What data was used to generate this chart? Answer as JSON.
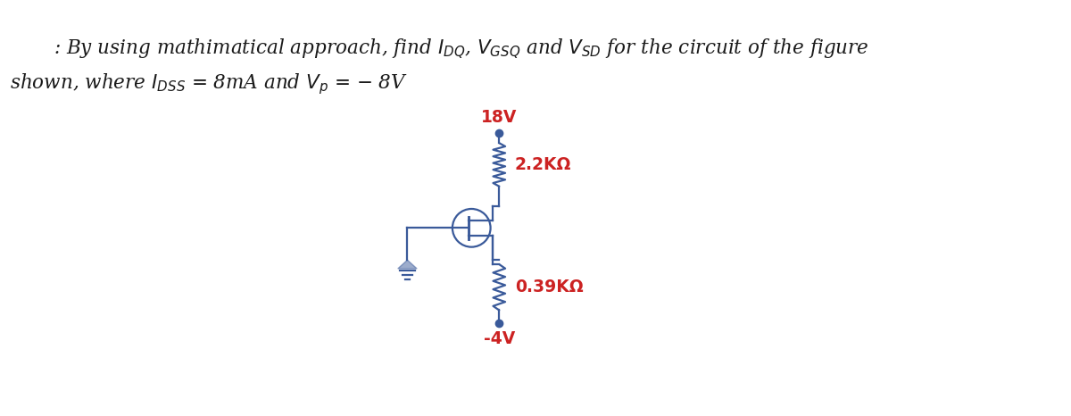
{
  "bg_color": "#ffffff",
  "text_color": "#1a1a1a",
  "circuit_color": "#3a5a9a",
  "label_color": "#cc2222",
  "title_line1": ": By using mathimatical approach, find $I_{DQ}$, $V_{GSQ}$ and $V_{SD}$ for the circuit of the figure",
  "title_line2": "shown, where $I_{DSS}$ = 8mA and $V_p$ = − 8V",
  "label_18V": "18V",
  "label_R1": "2.2KΩ",
  "label_R2": "0.39KΩ",
  "label_neg4V": "-4V",
  "title_fontsize": 15.5,
  "label_fontsize": 13.5,
  "lw": 1.6
}
